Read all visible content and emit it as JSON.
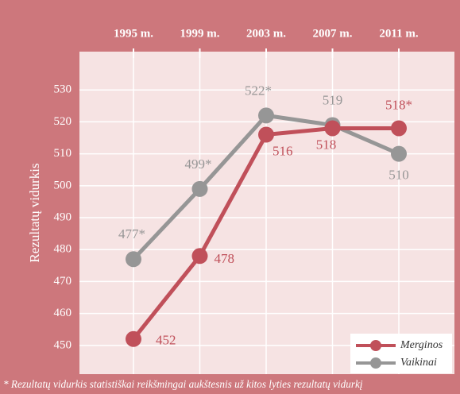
{
  "chart_data": {
    "type": "line",
    "y_label": "Rezultatų vidurkis",
    "categories": [
      "1995 m.",
      "1999 m.",
      "2003 m.",
      "2007 m.",
      "2011 m."
    ],
    "series": [
      {
        "name": "Merginos",
        "color": "#c0505a",
        "values": [
          452,
          478,
          516,
          518,
          518
        ],
        "value_labels": [
          "452",
          "478",
          "516",
          "518",
          "518*"
        ]
      },
      {
        "name": "Vaikinai",
        "color": "#969696",
        "values": [
          477,
          499,
          522,
          519,
          510
        ],
        "value_labels": [
          "477*",
          "499*",
          "522*",
          "519",
          "510"
        ]
      }
    ],
    "ylim": [
      441,
      542
    ],
    "yticks": [
      450,
      460,
      470,
      480,
      490,
      500,
      510,
      520,
      530
    ],
    "grid": true,
    "legend": "lower right",
    "footnote": "* Rezultatų vidurkis statistiškai reikšmingai aukštesnis už kitos lyties rezultatų vidurkį"
  }
}
